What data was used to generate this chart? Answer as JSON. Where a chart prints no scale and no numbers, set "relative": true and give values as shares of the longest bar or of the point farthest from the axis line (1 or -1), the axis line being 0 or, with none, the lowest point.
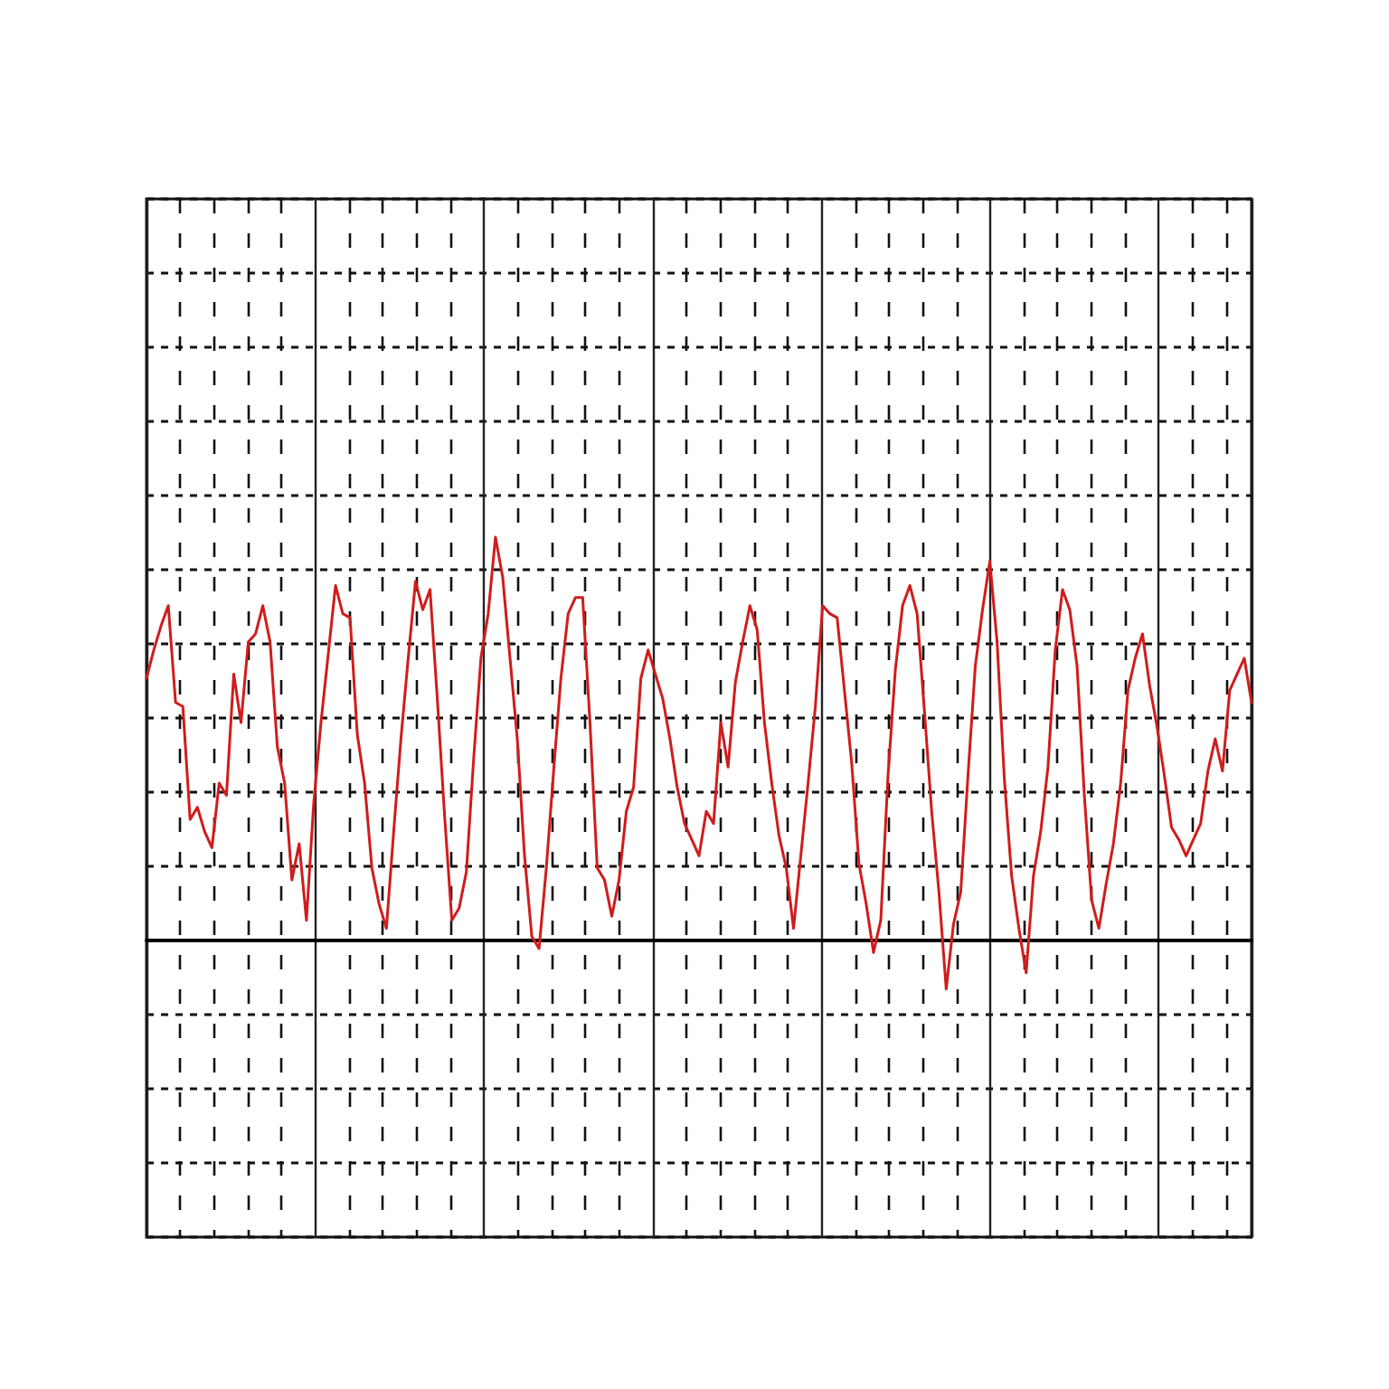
{
  "chart_data": {
    "type": "line",
    "relative": true,
    "color": "#d01c1c",
    "grid": true,
    "categories": [
      null,
      null,
      null,
      null,
      null,
      null,
      null,
      null,
      null,
      null,
      null,
      null,
      null,
      null,
      null,
      null,
      null,
      null,
      null,
      null,
      null,
      null,
      null,
      null,
      null,
      null,
      null,
      null,
      null,
      null,
      null,
      null,
      null,
      null,
      null,
      null,
      null,
      null,
      null,
      null,
      null,
      null,
      null,
      null,
      null,
      null,
      null,
      null,
      null,
      null,
      null,
      null,
      null,
      null,
      null,
      null,
      null,
      null,
      null,
      null,
      null,
      null,
      null,
      null,
      null,
      null,
      null,
      null,
      null,
      null,
      null,
      null,
      null,
      null,
      null,
      null,
      null,
      null,
      null,
      null,
      null,
      null,
      null,
      null,
      null,
      null,
      null,
      null,
      null,
      null,
      null,
      null,
      null,
      null,
      null,
      null,
      null,
      null,
      null,
      null,
      null,
      null,
      null,
      null,
      null,
      null,
      null,
      null,
      null,
      null,
      null,
      null,
      null,
      null,
      null,
      null,
      null,
      null,
      null,
      null,
      null,
      null,
      null,
      null,
      null,
      null,
      null,
      null,
      null,
      null,
      null,
      null,
      null,
      null,
      null,
      null,
      null,
      null,
      null,
      null,
      null,
      null,
      null,
      null,
      null,
      null,
      null,
      null,
      null,
      null,
      null,
      null,
      null
    ],
    "values": [
      0.65,
      0.72,
      0.78,
      0.83,
      0.59,
      0.58,
      0.3,
      0.33,
      0.27,
      0.23,
      0.39,
      0.36,
      0.66,
      0.54,
      0.74,
      0.76,
      0.83,
      0.74,
      0.48,
      0.39,
      0.15,
      0.24,
      0.05,
      0.34,
      0.54,
      0.71,
      0.88,
      0.81,
      0.8,
      0.51,
      0.39,
      0.18,
      0.09,
      0.03,
      0.27,
      0.5,
      0.7,
      0.89,
      0.82,
      0.87,
      0.6,
      0.31,
      0.05,
      0.08,
      0.17,
      0.45,
      0.7,
      0.81,
      1.0,
      0.9,
      0.7,
      0.5,
      0.21,
      0.01,
      -0.02,
      0.18,
      0.42,
      0.65,
      0.81,
      0.85,
      0.85,
      0.54,
      0.18,
      0.15,
      0.06,
      0.15,
      0.32,
      0.38,
      0.65,
      0.72,
      0.66,
      0.6,
      0.5,
      0.38,
      0.29,
      0.25,
      0.21,
      0.32,
      0.29,
      0.54,
      0.43,
      0.64,
      0.74,
      0.83,
      0.77,
      0.54,
      0.39,
      0.26,
      0.18,
      0.03,
      0.21,
      0.39,
      0.58,
      0.83,
      0.81,
      0.8,
      0.62,
      0.44,
      0.19,
      0.09,
      -0.03,
      0.05,
      0.41,
      0.67,
      0.83,
      0.88,
      0.81,
      0.57,
      0.32,
      0.12,
      -0.12,
      0.04,
      0.12,
      0.41,
      0.68,
      0.82,
      0.94,
      0.74,
      0.4,
      0.16,
      0.03,
      -0.08,
      0.16,
      0.27,
      0.43,
      0.72,
      0.87,
      0.82,
      0.68,
      0.36,
      0.1,
      0.03,
      0.14,
      0.24,
      0.39,
      0.62,
      0.7,
      0.76,
      0.63,
      0.53,
      0.41,
      0.28,
      0.25,
      0.21,
      0.25,
      0.29,
      0.42,
      0.5,
      0.42,
      0.62,
      0.66,
      0.7,
      0.59
    ]
  }
}
